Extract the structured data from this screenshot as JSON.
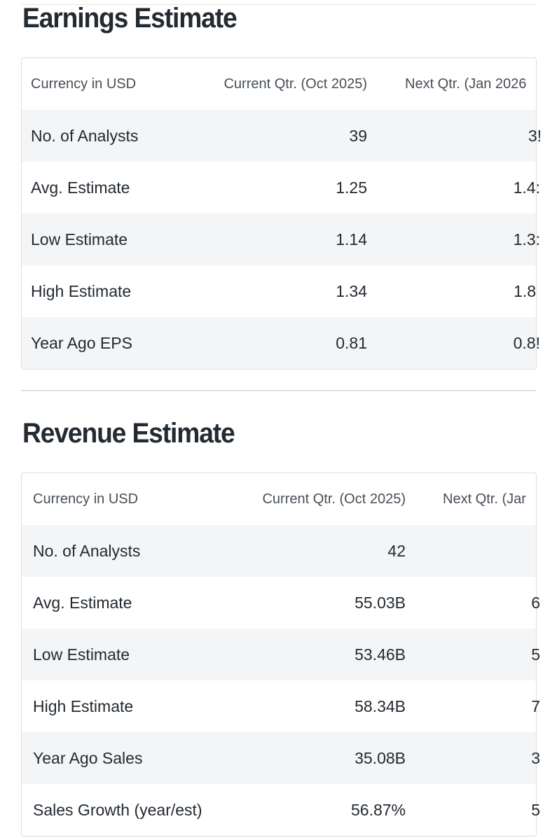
{
  "earnings": {
    "title": "Earnings Estimate",
    "headers": [
      "Currency in USD",
      "Current Qtr. (Oct 2025)",
      "Next Qtr. (Jan 2026"
    ],
    "rows": [
      {
        "label": "No. of Analysts",
        "current": "39",
        "next": "3!"
      },
      {
        "label": "Avg. Estimate",
        "current": "1.25",
        "next": "1.4:"
      },
      {
        "label": "Low Estimate",
        "current": "1.14",
        "next": "1.3:"
      },
      {
        "label": "High Estimate",
        "current": "1.34",
        "next": "1.8"
      },
      {
        "label": "Year Ago EPS",
        "current": "0.81",
        "next": "0.8!"
      }
    ]
  },
  "revenue": {
    "title": "Revenue Estimate",
    "headers": [
      "Currency in USD",
      "Current Qtr. (Oct 2025)",
      "Next Qtr. (Jar"
    ],
    "rows": [
      {
        "label": "No. of Analysts",
        "current": "42",
        "next": ""
      },
      {
        "label": "Avg. Estimate",
        "current": "55.03B",
        "next": "6"
      },
      {
        "label": "Low Estimate",
        "current": "53.46B",
        "next": "5"
      },
      {
        "label": "High Estimate",
        "current": "58.34B",
        "next": "7"
      },
      {
        "label": "Year Ago Sales",
        "current": "35.08B",
        "next": "3"
      },
      {
        "label": "Sales Growth (year/est)",
        "current": "56.87%",
        "next": "5"
      }
    ]
  }
}
